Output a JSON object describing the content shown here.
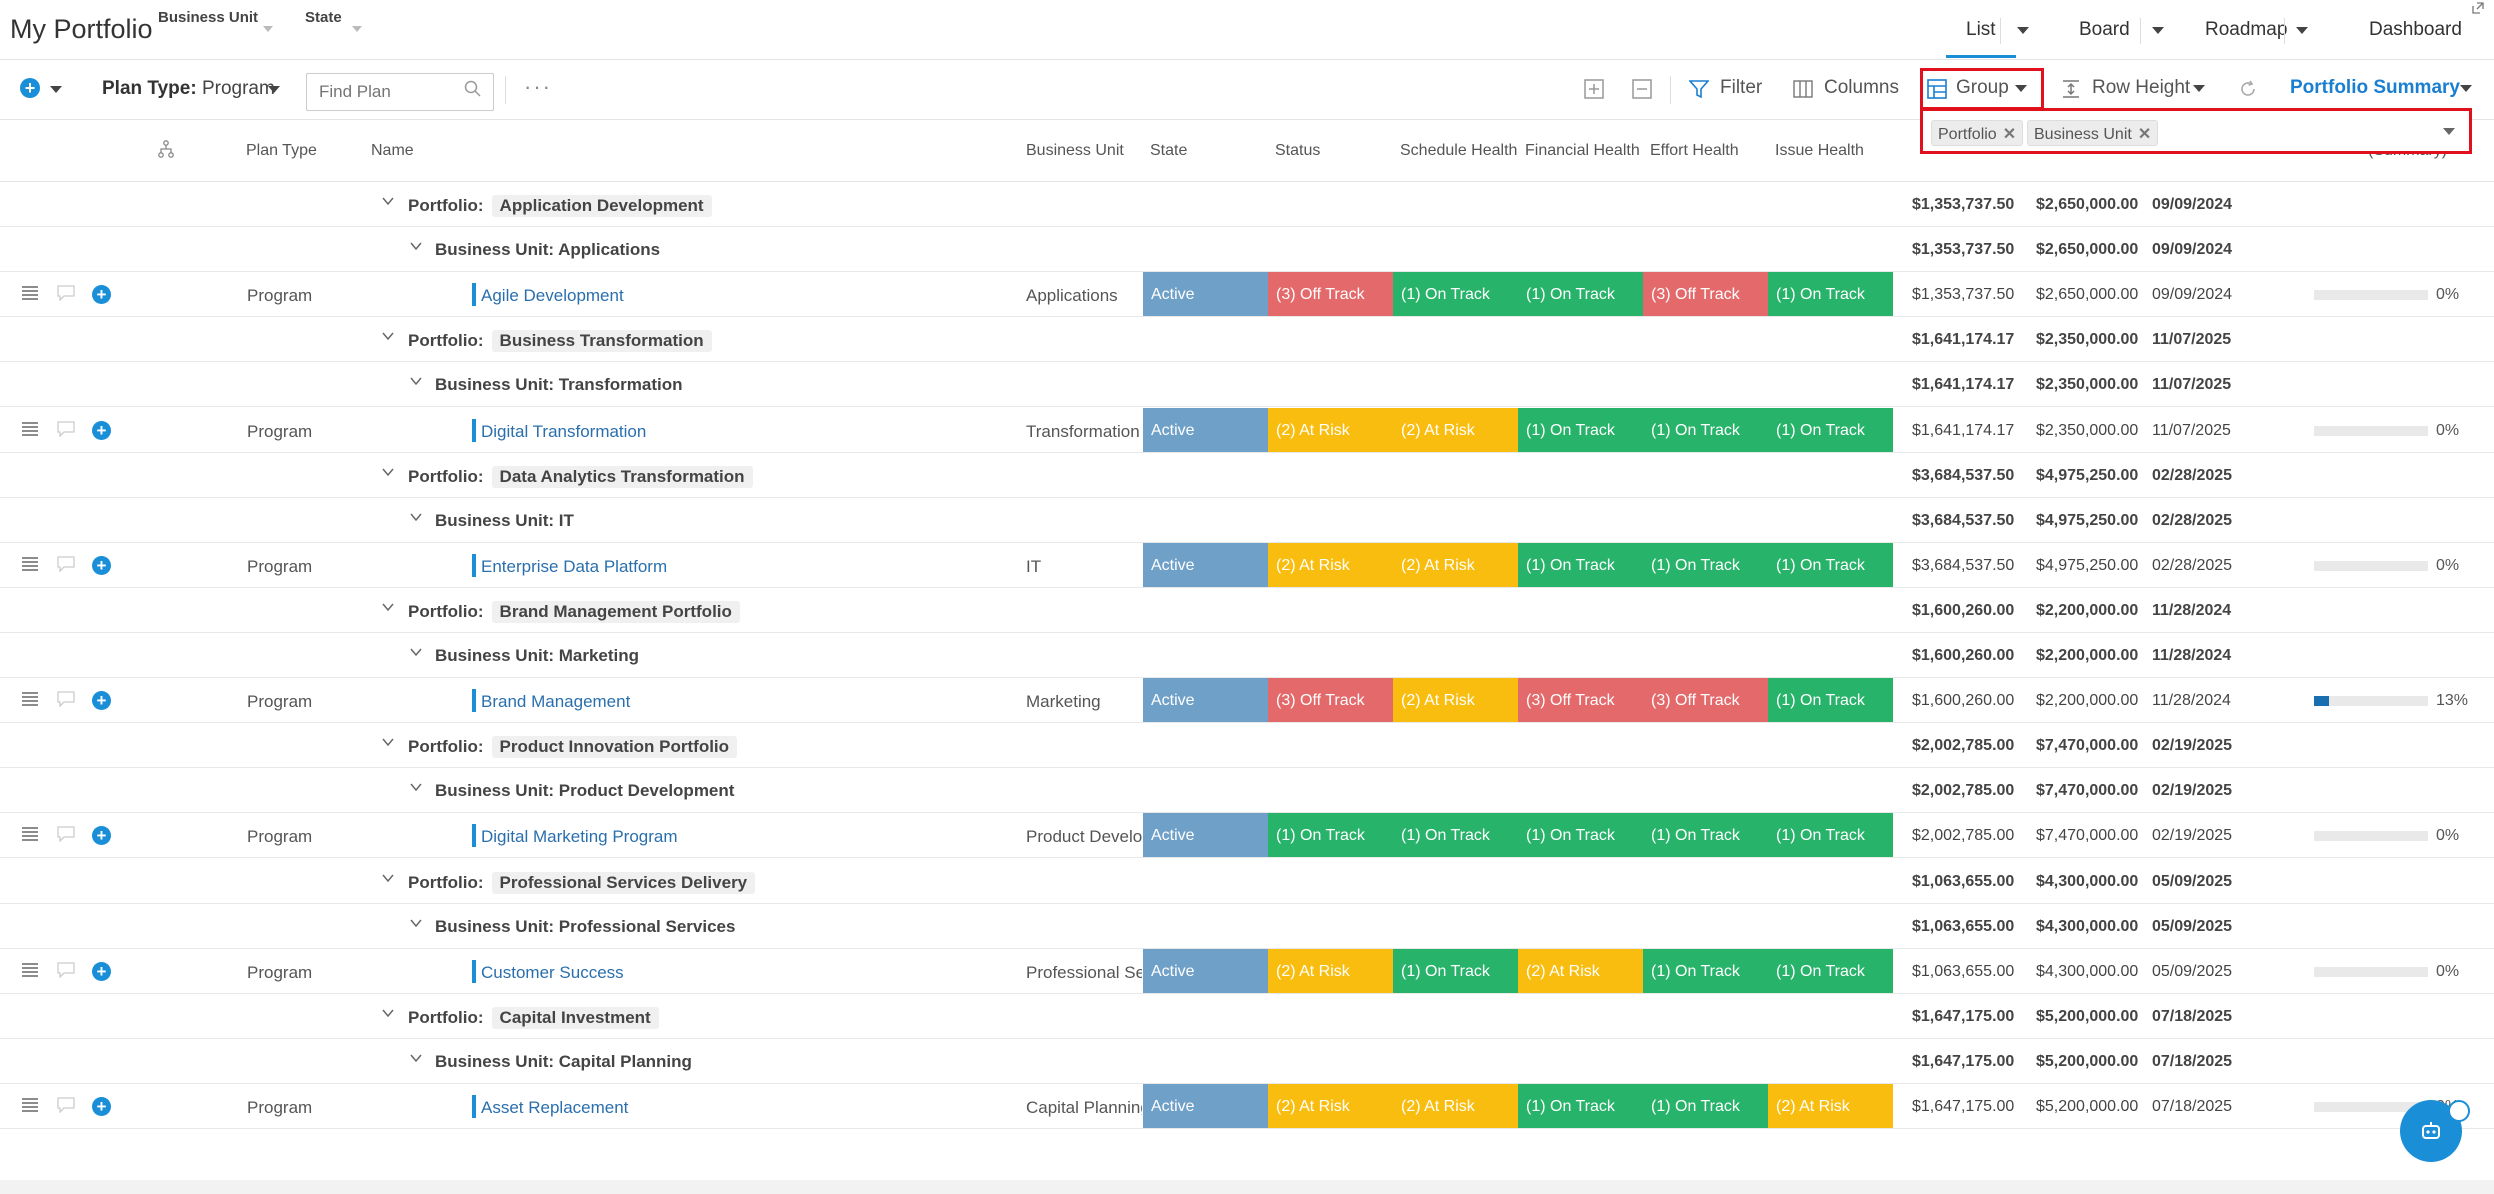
{
  "app": {
    "title": "My Portfolio",
    "filters": [
      {
        "label": "Business Unit"
      },
      {
        "label": "State"
      }
    ],
    "view_tabs": [
      {
        "label": "List"
      },
      {
        "label": "Board"
      },
      {
        "label": "Roadmap"
      },
      {
        "label": "Dashboard"
      }
    ]
  },
  "toolbar": {
    "plan_type_prefix": "Plan Type:",
    "plan_type_value": "Program",
    "find_placeholder": "Find Plan",
    "more": "···",
    "filter": "Filter",
    "columns": "Columns",
    "group": "Group",
    "row_height": "Row Height",
    "portfolio_summary": "Portfolio Summary"
  },
  "group_panel": {
    "chips": [
      "Portfolio",
      "Business Unit"
    ]
  },
  "columns": {
    "plan_type": "Plan Type",
    "name": "Name",
    "business_unit": "Business Unit",
    "state": "State",
    "status": "Status",
    "schedule_health": "Schedule Health",
    "financial_health": "Financial Health",
    "effort_health": "Effort Health",
    "issue_health": "Issue Health",
    "summary": "(Summary)"
  },
  "status_colors": {
    "Active": "#6fa0c8",
    "On Track": "#27b36a",
    "At Risk": "#f9bd0f",
    "Off Track": "#e4696b"
  },
  "groups": [
    {
      "portfolio": "Application Development",
      "bu_label": "Business Unit: Applications",
      "totals": [
        "$1,353,737.50",
        "$2,650,000.00",
        "09/09/2024"
      ],
      "item": {
        "plan_type": "Program",
        "name": "Agile Development",
        "business_unit": "Applications",
        "state": "Active",
        "status": "(3) Off Track",
        "schedule": "(1) On Track",
        "financial": "(1) On Track",
        "effort": "(3) Off Track",
        "issue": "(1) On Track",
        "values": [
          "$1,353,737.50",
          "$2,650,000.00",
          "09/09/2024"
        ],
        "progress": 0,
        "pct": "0%"
      }
    },
    {
      "portfolio": "Business Transformation",
      "bu_label": "Business Unit: Transformation",
      "totals": [
        "$1,641,174.17",
        "$2,350,000.00",
        "11/07/2025"
      ],
      "item": {
        "plan_type": "Program",
        "name": "Digital Transformation",
        "business_unit": "Transformation",
        "state": "Active",
        "status": "(2) At Risk",
        "schedule": "(2) At Risk",
        "financial": "(1) On Track",
        "effort": "(1) On Track",
        "issue": "(1) On Track",
        "values": [
          "$1,641,174.17",
          "$2,350,000.00",
          "11/07/2025"
        ],
        "progress": 0,
        "pct": "0%"
      }
    },
    {
      "portfolio": "Data Analytics Transformation",
      "bu_label": "Business Unit: IT",
      "totals": [
        "$3,684,537.50",
        "$4,975,250.00",
        "02/28/2025"
      ],
      "item": {
        "plan_type": "Program",
        "name": "Enterprise Data Platform",
        "business_unit": "IT",
        "state": "Active",
        "status": "(2) At Risk",
        "schedule": "(2) At Risk",
        "financial": "(1) On Track",
        "effort": "(1) On Track",
        "issue": "(1) On Track",
        "values": [
          "$3,684,537.50",
          "$4,975,250.00",
          "02/28/2025"
        ],
        "progress": 0,
        "pct": "0%"
      }
    },
    {
      "portfolio": "Brand Management Portfolio",
      "bu_label": "Business Unit: Marketing",
      "totals": [
        "$1,600,260.00",
        "$2,200,000.00",
        "11/28/2024"
      ],
      "item": {
        "plan_type": "Program",
        "name": "Brand Management",
        "business_unit": "Marketing",
        "state": "Active",
        "status": "(3) Off Track",
        "schedule": "(2) At Risk",
        "financial": "(3) Off Track",
        "effort": "(3) Off Track",
        "issue": "(1) On Track",
        "values": [
          "$1,600,260.00",
          "$2,200,000.00",
          "11/28/2024"
        ],
        "progress": 0.13,
        "pct": "13%"
      }
    },
    {
      "portfolio": "Product Innovation Portfolio",
      "bu_label": "Business Unit: Product Development",
      "totals": [
        "$2,002,785.00",
        "$7,470,000.00",
        "02/19/2025"
      ],
      "item": {
        "plan_type": "Program",
        "name": "Digital Marketing Program",
        "business_unit": "Product Development",
        "state": "Active",
        "status": "(1) On Track",
        "schedule": "(1) On Track",
        "financial": "(1) On Track",
        "effort": "(1) On Track",
        "issue": "(1) On Track",
        "values": [
          "$2,002,785.00",
          "$7,470,000.00",
          "02/19/2025"
        ],
        "progress": 0,
        "pct": "0%"
      }
    },
    {
      "portfolio": "Professional Services Delivery",
      "bu_label": "Business Unit: Professional Services",
      "totals": [
        "$1,063,655.00",
        "$4,300,000.00",
        "05/09/2025"
      ],
      "item": {
        "plan_type": "Program",
        "name": "Customer Success",
        "business_unit": "Professional Services",
        "state": "Active",
        "status": "(2) At Risk",
        "schedule": "(1) On Track",
        "financial": "(2) At Risk",
        "effort": "(1) On Track",
        "issue": "(1) On Track",
        "values": [
          "$1,063,655.00",
          "$4,300,000.00",
          "05/09/2025"
        ],
        "progress": 0,
        "pct": "0%"
      }
    },
    {
      "portfolio": "Capital Investment",
      "bu_label": "Business Unit: Capital Planning",
      "totals": [
        "$1,647,175.00",
        "$5,200,000.00",
        "07/18/2025"
      ],
      "item": {
        "plan_type": "Program",
        "name": "Asset Replacement",
        "business_unit": "Capital Planning",
        "state": "Active",
        "status": "(2) At Risk",
        "schedule": "(2) At Risk",
        "financial": "(1) On Track",
        "effort": "(1) On Track",
        "issue": "(2) At Risk",
        "values": [
          "$1,647,175.00",
          "$5,200,000.00",
          "07/18/2025"
        ],
        "progress": 0,
        "pct": "0%"
      }
    }
  ]
}
